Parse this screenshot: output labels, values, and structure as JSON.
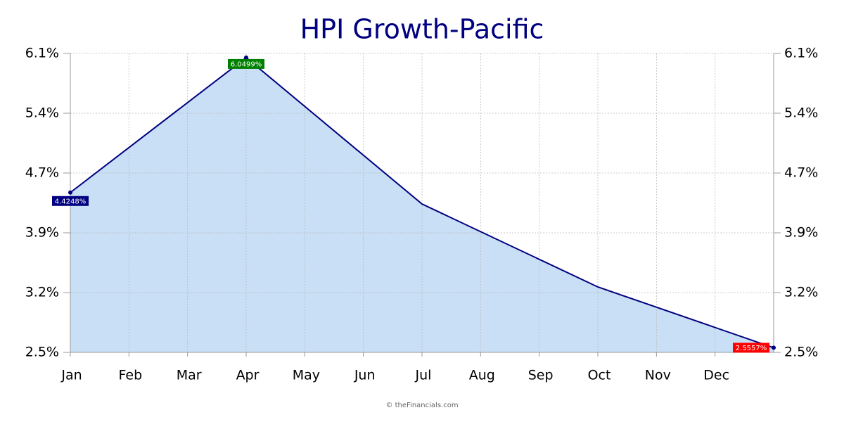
{
  "chart_data": {
    "type": "area",
    "title": "HPI Growth-Pacific",
    "x": [
      0,
      3,
      6,
      9,
      12
    ],
    "xlim": [
      0,
      12
    ],
    "xticks": [
      {
        "value": 0,
        "label": "Jan"
      },
      {
        "value": 1,
        "label": "Feb"
      },
      {
        "value": 2,
        "label": "Mar"
      },
      {
        "value": 3,
        "label": "Apr"
      },
      {
        "value": 4,
        "label": "May"
      },
      {
        "value": 5,
        "label": "Jun"
      },
      {
        "value": 6,
        "label": "Jul"
      },
      {
        "value": 7,
        "label": "Aug"
      },
      {
        "value": 8,
        "label": "Sep"
      },
      {
        "value": 9,
        "label": "Oct"
      },
      {
        "value": 10,
        "label": "Nov"
      },
      {
        "value": 11,
        "label": "Dec"
      }
    ],
    "values": [
      4.4248,
      6.0499,
      4.287,
      3.288,
      2.5557
    ],
    "value_labels": [
      "4.4248%",
      "6.0499%",
      null,
      null,
      "2.5557%"
    ],
    "label_colors": [
      "#000080",
      "#008000",
      null,
      null,
      "#ff0000"
    ],
    "color": "#000080",
    "fill": "#c8dff5",
    "ylim": [
      2.5,
      6.1
    ],
    "yticks": [
      {
        "value": 2.5,
        "label": "2.5%"
      },
      {
        "value": 3.22,
        "label": "3.2%"
      },
      {
        "value": 3.94,
        "label": "3.9%"
      },
      {
        "value": 4.66,
        "label": "4.7%"
      },
      {
        "value": 5.38,
        "label": "5.4%"
      },
      {
        "value": 6.1,
        "label": "6.1%"
      }
    ],
    "y2lim": [
      2.5,
      6.1
    ],
    "y2ticks": [
      {
        "value": 2.5,
        "label": "2.5%"
      },
      {
        "value": 3.22,
        "label": "3.2%"
      },
      {
        "value": 3.94,
        "label": "3.9%"
      },
      {
        "value": 4.66,
        "label": "4.7%"
      },
      {
        "value": 5.38,
        "label": "5.4%"
      },
      {
        "value": 6.1,
        "label": "6.1%"
      }
    ],
    "grid": true,
    "credit": "© theFinancials.com"
  }
}
